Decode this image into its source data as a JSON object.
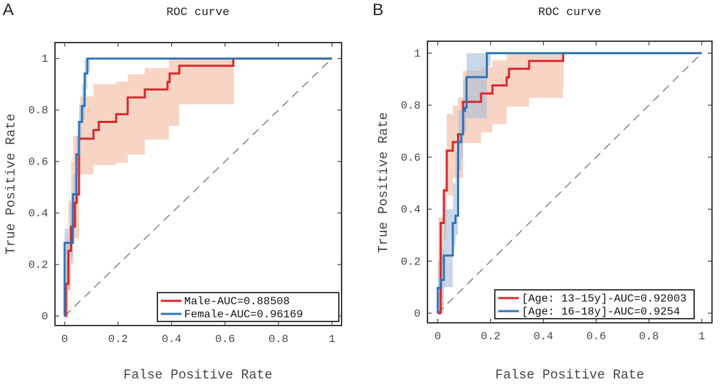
{
  "chart_data": [
    {
      "panel_label": "A",
      "type": "line",
      "title": "ROC curve",
      "xlabel": "False Positive Rate",
      "ylabel": "True Positive Rate",
      "xlim": [
        -0.036,
        1.036
      ],
      "ylim": [
        -0.037,
        1.062
      ],
      "xticks": [
        "0",
        "0.2",
        "0.4",
        "0.6",
        "0.8",
        "1"
      ],
      "yticks": [
        "0",
        "0.2",
        "0.4",
        "0.6",
        "0.8",
        "1"
      ],
      "legend_position": "bottom-right",
      "diagonal": {
        "style": "dashed",
        "color": "#555555"
      },
      "series": [
        {
          "name": "Male-AUC=0.88508",
          "color": "#d7262b",
          "band_color": "#f2b89c",
          "points": [
            [
              0,
              0
            ],
            [
              0.005,
              0
            ],
            [
              0.005,
              0.125
            ],
            [
              0.014,
              0.125
            ],
            [
              0.014,
              0.253
            ],
            [
              0.024,
              0.253
            ],
            [
              0.024,
              0.347
            ],
            [
              0.039,
              0.347
            ],
            [
              0.039,
              0.44
            ],
            [
              0.045,
              0.44
            ],
            [
              0.045,
              0.472
            ],
            [
              0.054,
              0.472
            ],
            [
              0.054,
              0.689
            ],
            [
              0.108,
              0.689
            ],
            [
              0.108,
              0.722
            ],
            [
              0.128,
              0.722
            ],
            [
              0.128,
              0.754
            ],
            [
              0.193,
              0.754
            ],
            [
              0.193,
              0.784
            ],
            [
              0.236,
              0.784
            ],
            [
              0.236,
              0.849
            ],
            [
              0.3,
              0.849
            ],
            [
              0.3,
              0.88
            ],
            [
              0.385,
              0.88
            ],
            [
              0.385,
              0.909
            ],
            [
              0.393,
              0.909
            ],
            [
              0.393,
              0.942
            ],
            [
              0.429,
              0.942
            ],
            [
              0.429,
              0.972
            ],
            [
              0.631,
              0.972
            ],
            [
              0.631,
              1
            ],
            [
              1,
              1
            ]
          ],
          "band": [
            [
              0,
              0,
              0.1
            ],
            [
              0.005,
              0.0,
              0.3
            ],
            [
              0.014,
              0.1,
              0.45
            ],
            [
              0.024,
              0.2,
              0.6
            ],
            [
              0.032,
              0.3,
              0.7
            ],
            [
              0.054,
              0.55,
              0.7
            ],
            [
              0.058,
              0.55,
              0.853
            ],
            [
              0.108,
              0.587,
              0.9
            ],
            [
              0.193,
              0.595,
              0.91
            ],
            [
              0.236,
              0.627,
              0.939
            ],
            [
              0.3,
              0.685,
              0.963
            ],
            [
              0.39,
              0.739,
              1
            ],
            [
              0.429,
              0.822,
              1
            ],
            [
              0.631,
              0.822,
              1
            ]
          ]
        },
        {
          "name": "Female-AUC=0.96169",
          "color": "#2f74b5",
          "band_color": "#a7bddb",
          "points": [
            [
              0,
              0
            ],
            [
              0,
              0.284
            ],
            [
              0.031,
              0.284
            ],
            [
              0.031,
              0.473
            ],
            [
              0.044,
              0.473
            ],
            [
              0.044,
              0.628
            ],
            [
              0.054,
              0.628
            ],
            [
              0.054,
              0.754
            ],
            [
              0.065,
              0.754
            ],
            [
              0.065,
              0.816
            ],
            [
              0.075,
              0.816
            ],
            [
              0.075,
              0.942
            ],
            [
              0.085,
              0.942
            ],
            [
              0.085,
              1
            ],
            [
              1,
              1
            ]
          ],
          "band": [
            [
              0,
              0.1,
              0.34
            ],
            [
              0.02,
              0.22,
              0.44
            ],
            [
              0.031,
              0.38,
              0.55
            ],
            [
              0.044,
              0.55,
              0.7
            ],
            [
              0.054,
              0.68,
              0.82
            ],
            [
              0.065,
              0.76,
              0.9
            ],
            [
              0.075,
              0.88,
              1
            ],
            [
              0.085,
              0.95,
              1
            ],
            [
              0.095,
              1,
              1
            ]
          ]
        }
      ]
    },
    {
      "panel_label": "B",
      "type": "line",
      "title": "ROC curve",
      "xlabel": "False Positive Rate",
      "ylabel": "True Positive Rate",
      "xlim": [
        -0.039,
        1.039
      ],
      "ylim": [
        -0.037,
        1.046
      ],
      "xticks": [
        "0",
        "0.2",
        "0.4",
        "0.6",
        "0.8",
        "1"
      ],
      "yticks": [
        "0",
        "0.2",
        "0.4",
        "0.6",
        "0.8",
        "1"
      ],
      "legend_position": "bottom-right",
      "diagonal": {
        "style": "dashed",
        "color": "#555555"
      },
      "series": [
        {
          "name": "[Age: 13–15y]-AUC=0.92003",
          "color": "#d7262b",
          "band_color": "#f2b89c",
          "points": [
            [
              0,
              0
            ],
            [
              0.011,
              0
            ],
            [
              0.011,
              0.347
            ],
            [
              0.023,
              0.347
            ],
            [
              0.023,
              0.472
            ],
            [
              0.034,
              0.472
            ],
            [
              0.034,
              0.625
            ],
            [
              0.057,
              0.625
            ],
            [
              0.057,
              0.658
            ],
            [
              0.077,
              0.658
            ],
            [
              0.077,
              0.688
            ],
            [
              0.096,
              0.688
            ],
            [
              0.096,
              0.813
            ],
            [
              0.164,
              0.813
            ],
            [
              0.164,
              0.845
            ],
            [
              0.207,
              0.845
            ],
            [
              0.207,
              0.876
            ],
            [
              0.261,
              0.876
            ],
            [
              0.261,
              0.907
            ],
            [
              0.27,
              0.907
            ],
            [
              0.27,
              0.94
            ],
            [
              0.346,
              0.94
            ],
            [
              0.346,
              0.97
            ],
            [
              0.475,
              0.97
            ],
            [
              0.475,
              1
            ],
            [
              1,
              1
            ]
          ],
          "band": [
            [
              0.003,
              0,
              0.37
            ],
            [
              0.023,
              0.284,
              0.485
            ],
            [
              0.034,
              0.454,
              0.767
            ],
            [
              0.057,
              0.52,
              0.798
            ],
            [
              0.077,
              0.52,
              0.831
            ],
            [
              0.096,
              0.655,
              0.932
            ],
            [
              0.164,
              0.695,
              0.947
            ],
            [
              0.207,
              0.727,
              0.972
            ],
            [
              0.261,
              0.794,
              1
            ],
            [
              0.346,
              0.828,
              1
            ],
            [
              0.475,
              0.872,
              1
            ]
          ]
        },
        {
          "name": "[Age: 16–18y]-AUC=0.9254",
          "color": "#2f74b5",
          "band_color": "#a7bddb",
          "points": [
            [
              0,
              0
            ],
            [
              0,
              0.097
            ],
            [
              0.012,
              0.097
            ],
            [
              0.012,
              0.128
            ],
            [
              0.023,
              0.128
            ],
            [
              0.023,
              0.222
            ],
            [
              0.057,
              0.222
            ],
            [
              0.057,
              0.347
            ],
            [
              0.067,
              0.347
            ],
            [
              0.067,
              0.375
            ],
            [
              0.077,
              0.375
            ],
            [
              0.077,
              0.658
            ],
            [
              0.089,
              0.658
            ],
            [
              0.089,
              0.688
            ],
            [
              0.096,
              0.688
            ],
            [
              0.096,
              0.778
            ],
            [
              0.103,
              0.778
            ],
            [
              0.103,
              0.79
            ],
            [
              0.109,
              0.79
            ],
            [
              0.109,
              0.908
            ],
            [
              0.186,
              0.908
            ],
            [
              0.186,
              1
            ],
            [
              1,
              1
            ]
          ],
          "band": [
            [
              0,
              0,
              0.2
            ],
            [
              0.012,
              0.03,
              0.25
            ],
            [
              0.023,
              0.1,
              0.4
            ],
            [
              0.057,
              0.26,
              0.5
            ],
            [
              0.067,
              0.3,
              0.62
            ],
            [
              0.077,
              0.55,
              0.78
            ],
            [
              0.089,
              0.6,
              0.82
            ],
            [
              0.096,
              0.7,
              0.9
            ],
            [
              0.109,
              0.75,
              1
            ],
            [
              0.186,
              0.95,
              1
            ],
            [
              0.2,
              1,
              1
            ]
          ]
        }
      ]
    }
  ]
}
